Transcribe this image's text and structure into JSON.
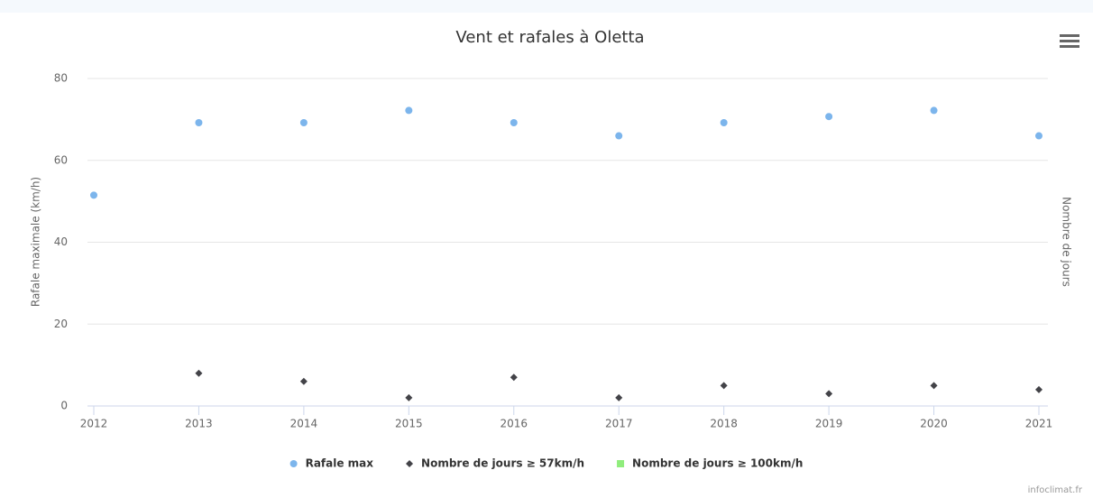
{
  "chart_data": {
    "type": "scatter",
    "title": "Vent et rafales à Oletta",
    "y_label": "Rafale maximale (km/h)",
    "y2_label": "Nombre de jours",
    "credit": "infoclimat.fr",
    "x": [
      2012,
      2013,
      2014,
      2015,
      2016,
      2017,
      2018,
      2019,
      2020,
      2021
    ],
    "xlim": [
      2012,
      2021
    ],
    "xticks": [
      2012,
      2013,
      2014,
      2015,
      2016,
      2017,
      2018,
      2019,
      2020,
      2021
    ],
    "ylim": [
      0,
      80
    ],
    "yticks": [
      0,
      20,
      40,
      60,
      80
    ],
    "grid": true,
    "legend": "bottom",
    "series": [
      {
        "name": "Rafale max",
        "color": "#7cb5ec",
        "symbol": "circle",
        "values": [
          51.5,
          69.2,
          69.2,
          72.2,
          69.2,
          66,
          69.2,
          70.7,
          72.2,
          66
        ]
      },
      {
        "name": "Nombre de jours ≥ 57km/h",
        "color": "#434348",
        "symbol": "diamond",
        "values": [
          null,
          8,
          6,
          2,
          7,
          2,
          5,
          3,
          5,
          4
        ]
      },
      {
        "name": "Nombre de jours ≥ 100km/h",
        "color": "#90ed7d",
        "symbol": "square",
        "values": [
          null,
          null,
          null,
          null,
          null,
          null,
          null,
          null,
          null,
          null
        ]
      }
    ]
  }
}
